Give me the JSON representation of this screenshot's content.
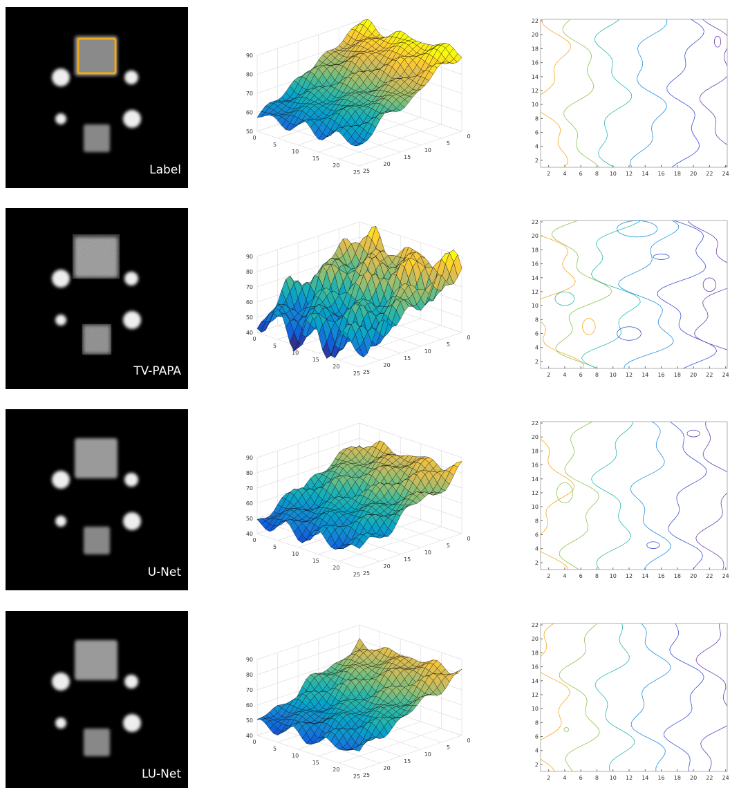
{
  "panels": [
    {
      "label": "Label",
      "surface": {
        "zticks": [
          50,
          60,
          70,
          80,
          90
        ],
        "xticks": [
          0,
          5,
          10,
          15,
          20,
          25
        ],
        "yticks": [
          0,
          5,
          10,
          15,
          20,
          25
        ]
      },
      "contour": {
        "xticks": [
          2,
          4,
          6,
          8,
          10,
          12,
          14,
          16,
          18,
          20,
          22,
          24
        ],
        "yticks": [
          2,
          4,
          6,
          8,
          10,
          12,
          14,
          16,
          18,
          20,
          22
        ]
      }
    },
    {
      "label": "TV-PAPA",
      "surface": {
        "zticks": [
          40,
          50,
          60,
          70,
          80,
          90
        ],
        "xticks": [
          0,
          5,
          10,
          15,
          20,
          25
        ],
        "yticks": [
          0,
          5,
          10,
          15,
          20,
          25
        ]
      },
      "contour": {
        "xticks": [
          2,
          4,
          6,
          8,
          10,
          12,
          14,
          16,
          18,
          20,
          22,
          24
        ],
        "yticks": [
          2,
          4,
          6,
          8,
          10,
          12,
          14,
          16,
          18,
          20,
          22
        ]
      }
    },
    {
      "label": "U-Net",
      "surface": {
        "zticks": [
          40,
          50,
          60,
          70,
          80,
          90
        ],
        "xticks": [
          0,
          5,
          10,
          15,
          20,
          25
        ],
        "yticks": [
          0,
          5,
          10,
          15,
          20,
          25
        ]
      },
      "contour": {
        "xticks": [
          2,
          4,
          6,
          8,
          10,
          12,
          14,
          16,
          18,
          20,
          22,
          24
        ],
        "yticks": [
          2,
          4,
          6,
          8,
          10,
          12,
          14,
          16,
          18,
          20,
          22
        ]
      }
    },
    {
      "label": "LU-Net",
      "surface": {
        "zticks": [
          40,
          50,
          60,
          70,
          80,
          90
        ],
        "xticks": [
          0,
          5,
          10,
          15,
          20,
          25
        ],
        "yticks": [
          0,
          5,
          10,
          15,
          20,
          25
        ]
      },
      "contour": {
        "xticks": [
          2,
          4,
          6,
          8,
          10,
          12,
          14,
          16,
          18,
          20,
          22,
          24
        ],
        "yticks": [
          2,
          4,
          6,
          8,
          10,
          12,
          14,
          16,
          18,
          20,
          22
        ]
      }
    }
  ]
}
